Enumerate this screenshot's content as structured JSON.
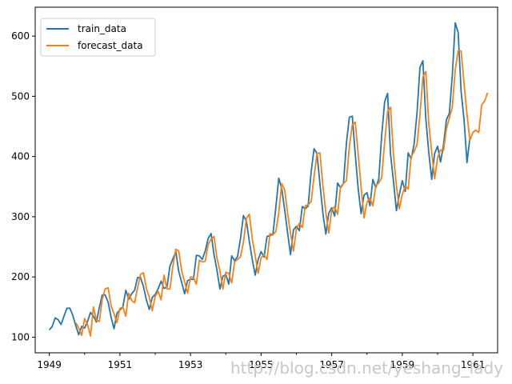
{
  "chart_data": {
    "type": "line",
    "title": "",
    "xlabel": "",
    "ylabel": "",
    "xlim": [
      1948.6,
      1961.7
    ],
    "ylim": [
      74,
      648
    ],
    "grid": false,
    "legend": {
      "position": "top-left",
      "entries": [
        "train_data",
        "forecast_data"
      ]
    },
    "x_ticks": [
      {
        "value": 1949,
        "label": "1949"
      },
      {
        "value": 1951,
        "label": "1951"
      },
      {
        "value": 1953,
        "label": "1953"
      },
      {
        "value": 1955,
        "label": "1955"
      },
      {
        "value": 1957,
        "label": "1957"
      },
      {
        "value": 1959,
        "label": "1959"
      },
      {
        "value": 1961,
        "label": "1961"
      }
    ],
    "x_minor_ticks": [
      1950,
      1952,
      1954,
      1956,
      1958,
      1960
    ],
    "y_ticks": [
      {
        "value": 100,
        "label": "100"
      },
      {
        "value": 200,
        "label": "200"
      },
      {
        "value": 300,
        "label": "300"
      },
      {
        "value": 400,
        "label": "400"
      },
      {
        "value": 500,
        "label": "500"
      },
      {
        "value": 600,
        "label": "600"
      }
    ],
    "series": [
      {
        "name": "train_data",
        "color": "#1f77b4",
        "start_year": 1949,
        "step_years": 0.08333333,
        "values": [
          112,
          118,
          132,
          129,
          121,
          135,
          148,
          148,
          136,
          119,
          104,
          118,
          115,
          126,
          141,
          135,
          125,
          149,
          170,
          170,
          158,
          133,
          114,
          140,
          145,
          150,
          178,
          163,
          172,
          178,
          199,
          199,
          184,
          162,
          146,
          166,
          171,
          180,
          193,
          181,
          183,
          218,
          230,
          242,
          209,
          191,
          172,
          194,
          196,
          196,
          236,
          235,
          229,
          243,
          264,
          272,
          237,
          211,
          180,
          201,
          204,
          188,
          235,
          227,
          234,
          264,
          302,
          293,
          259,
          229,
          203,
          229,
          242,
          233,
          267,
          269,
          270,
          315,
          364,
          347,
          312,
          274,
          237,
          278,
          284,
          277,
          317,
          313,
          318,
          374,
          413,
          405,
          355,
          306,
          271,
          306,
          315,
          301,
          356,
          348,
          355,
          422,
          465,
          467,
          404,
          347,
          305,
          336,
          340,
          318,
          362,
          348,
          363,
          435,
          491,
          505,
          404,
          359,
          310,
          337,
          360,
          342,
          406,
          396,
          420,
          472,
          548,
          559,
          463,
          407,
          362,
          405,
          417,
          391,
          419,
          461,
          472,
          535,
          622,
          606,
          508,
          461,
          390,
          432
        ]
      },
      {
        "name": "forecast_data",
        "color": "#ff7f0e",
        "start_year": 1949.75,
        "step_years": 0.08333333,
        "values": [
          124,
          115,
          103,
          131,
          121,
          102,
          150,
          128,
          126,
          163,
          180,
          182,
          152,
          139,
          124,
          148,
          150,
          135,
          173,
          161,
          157,
          182,
          204,
          207,
          181,
          166,
          144,
          168,
          176,
          162,
          203,
          180,
          180,
          218,
          246,
          243,
          210,
          192,
          173,
          200,
          199,
          188,
          228,
          225,
          226,
          254,
          263,
          267,
          231,
          210,
          180,
          208,
          206,
          190,
          225,
          229,
          234,
          258,
          297,
          304,
          263,
          235,
          206,
          232,
          237,
          229,
          272,
          270,
          275,
          306,
          355,
          345,
          306,
          272,
          243,
          280,
          289,
          282,
          318,
          320,
          325,
          366,
          405,
          406,
          352,
          307,
          273,
          311,
          317,
          304,
          350,
          355,
          360,
          416,
          453,
          457,
          404,
          349,
          298,
          324,
          331,
          318,
          352,
          356,
          365,
          424,
          475,
          482,
          403,
          351,
          313,
          337,
          351,
          346,
          400,
          408,
          420,
          469,
          532,
          541,
          455,
          407,
          363,
          398,
          411,
          410,
          446,
          464,
          482,
          544,
          576,
          575,
          521,
          470,
          427,
          440,
          444,
          440,
          486,
          492,
          506
        ]
      }
    ]
  },
  "watermark": "http://blog.csdn.net/yeshang_lady"
}
